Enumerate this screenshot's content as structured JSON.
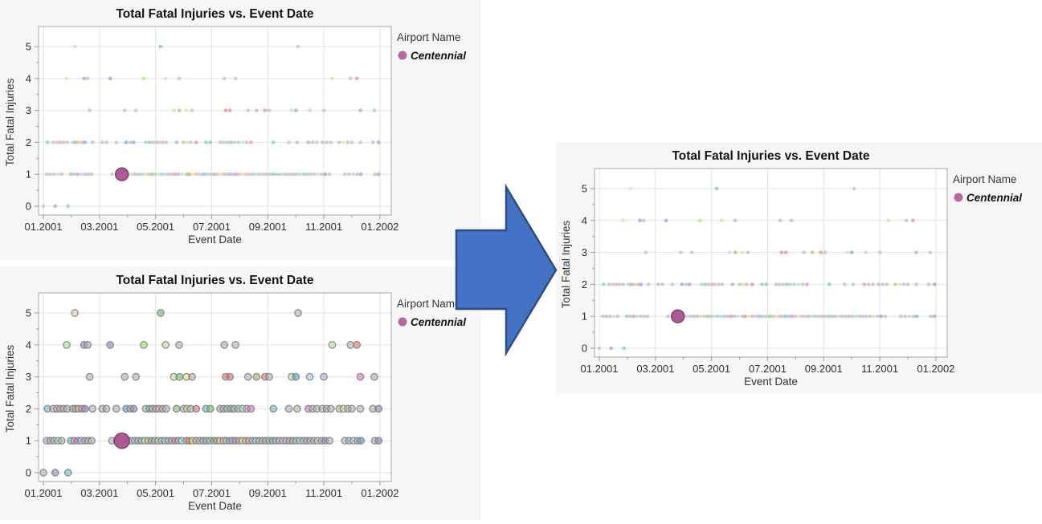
{
  "style": {
    "panel_bg": "#f6f6f6",
    "plot_bg": "#ffffff",
    "grid_color": "#e2e2e2",
    "frame_color": "#a8a8a8"
  },
  "arrow": {
    "fill": "#4472c4",
    "stroke": "#2e4d80"
  },
  "palette": {
    "g": "#b0b0b0",
    "pk": "#f49ac1",
    "mg": "#e06fd0",
    "pu": "#8f7fc9",
    "lv": "#b8a7e0",
    "bl": "#5b9bd5",
    "lb": "#a6c9f0",
    "cy": "#7fd8e8",
    "te": "#5fbfbf",
    "mi": "#9fe8c4",
    "gr": "#6fbf73",
    "lgr": "#b5e596",
    "bgr": "#8ee657",
    "ol": "#b0a860",
    "ye": "#e6e26e",
    "or": "#f4a860",
    "tn": "#ecc9a0",
    "rd": "#e07070"
  },
  "charts": [
    {
      "name": "top-left-source",
      "marker_style": "small"
    },
    {
      "name": "bottom-left-source",
      "marker_style": "large"
    },
    {
      "name": "merged-result",
      "marker_style": "small"
    }
  ],
  "chart_data": {
    "type": "scatter",
    "title": "Total Fatal Injuries vs. Event Date",
    "xlabel": "Event Date",
    "ylabel": "Total Fatal Injuries",
    "x_ticks": [
      "01.2001",
      "03.2001",
      "05.2001",
      "07.2001",
      "09.2001",
      "11.2001",
      "01.2002"
    ],
    "x_tick_months": [
      0,
      2,
      4,
      6,
      8,
      10,
      12
    ],
    "x_minor_months": [
      1,
      3,
      5,
      7,
      9,
      11
    ],
    "y_ticks": [
      "0",
      "1",
      "2",
      "3",
      "4",
      "5"
    ],
    "ylim": [
      0,
      5
    ],
    "grid": true,
    "legend": {
      "title": "Airport Name",
      "position": "right",
      "entries": [
        {
          "label": "Centennial",
          "color": "#b5699e"
        }
      ]
    },
    "highlight_point": {
      "month": 2.8,
      "y": 1,
      "series": "Centennial",
      "fill": "#a8538f",
      "stroke": "#83406f"
    },
    "points_by_y": {
      "0": [
        [
          0.0,
          "g"
        ],
        [
          0.42,
          "pu"
        ],
        [
          0.88,
          "te"
        ]
      ],
      "1": [
        [
          0.12,
          "lv"
        ],
        [
          0.25,
          "g"
        ],
        [
          0.38,
          "g"
        ],
        [
          0.52,
          "mi"
        ],
        [
          0.65,
          "g"
        ],
        [
          0.98,
          "te"
        ],
        [
          1.1,
          "g"
        ],
        [
          1.22,
          "mg"
        ],
        [
          1.35,
          "lb"
        ],
        [
          1.48,
          "g"
        ],
        [
          1.6,
          "g"
        ],
        [
          1.72,
          "g"
        ],
        [
          2.45,
          "g"
        ],
        [
          2.62,
          "pk"
        ],
        [
          3.02,
          "pk"
        ],
        [
          3.14,
          "lb"
        ],
        [
          3.26,
          "g"
        ],
        [
          3.38,
          "g"
        ],
        [
          3.5,
          "g"
        ],
        [
          3.62,
          "mi"
        ],
        [
          3.74,
          "or"
        ],
        [
          3.86,
          "te"
        ],
        [
          3.98,
          "g"
        ],
        [
          4.1,
          "lgr"
        ],
        [
          4.22,
          "g"
        ],
        [
          4.34,
          "cy"
        ],
        [
          4.46,
          "g"
        ],
        [
          4.58,
          "g"
        ],
        [
          4.7,
          "mg"
        ],
        [
          4.82,
          "g"
        ],
        [
          4.94,
          "mi"
        ],
        [
          5.1,
          "g"
        ],
        [
          5.2,
          "rd"
        ],
        [
          5.32,
          "ye"
        ],
        [
          5.45,
          "g"
        ],
        [
          5.58,
          "pk"
        ],
        [
          5.7,
          "te"
        ],
        [
          5.82,
          "g"
        ],
        [
          5.94,
          "g"
        ],
        [
          6.08,
          "gr"
        ],
        [
          6.2,
          "g"
        ],
        [
          6.3,
          "ye"
        ],
        [
          6.42,
          "pk"
        ],
        [
          6.52,
          "g"
        ],
        [
          6.64,
          "te"
        ],
        [
          6.75,
          "g"
        ],
        [
          6.86,
          "mg"
        ],
        [
          6.98,
          "g"
        ],
        [
          7.1,
          "ye"
        ],
        [
          7.22,
          "g"
        ],
        [
          7.34,
          "pk"
        ],
        [
          7.46,
          "g"
        ],
        [
          7.58,
          "cy"
        ],
        [
          7.7,
          "g"
        ],
        [
          7.82,
          "g"
        ],
        [
          7.94,
          "g"
        ],
        [
          8.06,
          "g"
        ],
        [
          8.18,
          "te"
        ],
        [
          8.3,
          "g"
        ],
        [
          8.42,
          "g"
        ],
        [
          8.55,
          "lb"
        ],
        [
          8.66,
          "g"
        ],
        [
          8.78,
          "g"
        ],
        [
          8.9,
          "g"
        ],
        [
          9.02,
          "g"
        ],
        [
          9.15,
          "cy"
        ],
        [
          9.28,
          "g"
        ],
        [
          9.4,
          "g"
        ],
        [
          9.52,
          "g"
        ],
        [
          9.65,
          "lv"
        ],
        [
          9.78,
          "lgr"
        ],
        [
          9.92,
          "g"
        ],
        [
          10.05,
          "pu"
        ],
        [
          10.2,
          "g"
        ],
        [
          10.75,
          "g"
        ],
        [
          10.9,
          "g"
        ],
        [
          11.05,
          "lb"
        ],
        [
          11.2,
          "g"
        ],
        [
          11.32,
          "bl"
        ],
        [
          11.82,
          "g"
        ],
        [
          11.95,
          "pu"
        ]
      ],
      "2": [
        [
          0.15,
          "te"
        ],
        [
          0.35,
          "g"
        ],
        [
          0.48,
          "pk"
        ],
        [
          0.6,
          "g"
        ],
        [
          0.72,
          "g"
        ],
        [
          0.85,
          "g"
        ],
        [
          1.05,
          "g"
        ],
        [
          1.15,
          "te"
        ],
        [
          1.25,
          "or"
        ],
        [
          1.38,
          "g"
        ],
        [
          1.48,
          "pu"
        ],
        [
          1.75,
          "g"
        ],
        [
          2.1,
          "g"
        ],
        [
          2.25,
          "g"
        ],
        [
          2.6,
          "g"
        ],
        [
          2.95,
          "bl"
        ],
        [
          3.1,
          "g"
        ],
        [
          3.22,
          "pu"
        ],
        [
          3.65,
          "g"
        ],
        [
          3.78,
          "te"
        ],
        [
          3.9,
          "g"
        ],
        [
          4.02,
          "g"
        ],
        [
          4.12,
          "pk"
        ],
        [
          4.25,
          "g"
        ],
        [
          4.38,
          "g"
        ],
        [
          4.75,
          "gr"
        ],
        [
          5.0,
          "g"
        ],
        [
          5.12,
          "ye"
        ],
        [
          5.25,
          "g"
        ],
        [
          5.45,
          "rd"
        ],
        [
          5.8,
          "te"
        ],
        [
          5.95,
          "gr"
        ],
        [
          6.3,
          "g"
        ],
        [
          6.42,
          "g"
        ],
        [
          6.55,
          "g"
        ],
        [
          6.68,
          "te"
        ],
        [
          6.8,
          "g"
        ],
        [
          6.95,
          "g"
        ],
        [
          7.1,
          "mi"
        ],
        [
          7.25,
          "g"
        ],
        [
          7.4,
          "mg"
        ],
        [
          8.2,
          "te"
        ],
        [
          8.75,
          "g"
        ],
        [
          9.05,
          "g"
        ],
        [
          9.45,
          "mg"
        ],
        [
          9.6,
          "g"
        ],
        [
          9.75,
          "g"
        ],
        [
          9.95,
          "g"
        ],
        [
          10.1,
          "g"
        ],
        [
          10.25,
          "g"
        ],
        [
          10.55,
          "g"
        ],
        [
          10.7,
          "ye"
        ],
        [
          10.85,
          "g"
        ],
        [
          11.0,
          "g"
        ],
        [
          11.3,
          "g"
        ],
        [
          11.75,
          "g"
        ],
        [
          11.95,
          "pu"
        ]
      ],
      "3": [
        [
          1.65,
          "g"
        ],
        [
          2.9,
          "g"
        ],
        [
          3.3,
          "g"
        ],
        [
          4.65,
          "lgr"
        ],
        [
          4.85,
          "gr"
        ],
        [
          5.1,
          "ye"
        ],
        [
          5.3,
          "g"
        ],
        [
          6.5,
          "rd"
        ],
        [
          6.65,
          "rd"
        ],
        [
          7.3,
          "g"
        ],
        [
          7.6,
          "ol"
        ],
        [
          7.9,
          "rd"
        ],
        [
          8.05,
          "g"
        ],
        [
          8.85,
          "lgr"
        ],
        [
          9.0,
          "bl"
        ],
        [
          9.5,
          "lb"
        ],
        [
          10.0,
          "lv"
        ],
        [
          11.3,
          "mg"
        ],
        [
          11.8,
          "g"
        ]
      ],
      "4": [
        [
          0.83,
          "lgr"
        ],
        [
          1.45,
          "pu"
        ],
        [
          1.58,
          "g"
        ],
        [
          2.38,
          "pu"
        ],
        [
          3.58,
          "bgr"
        ],
        [
          4.36,
          "lgr"
        ],
        [
          4.84,
          "g"
        ],
        [
          6.45,
          "g"
        ],
        [
          6.85,
          "g"
        ],
        [
          10.3,
          "lgr"
        ],
        [
          10.95,
          "g"
        ],
        [
          11.18,
          "rd"
        ]
      ],
      "5": [
        [
          1.12,
          "tn"
        ],
        [
          4.18,
          "gr"
        ],
        [
          9.08,
          "g"
        ]
      ]
    }
  }
}
